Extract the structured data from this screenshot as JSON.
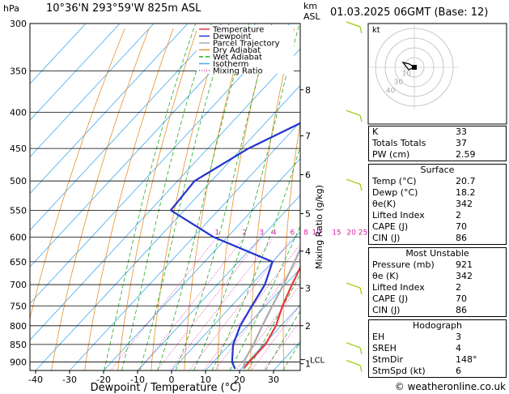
{
  "header": {
    "hpa": "hPa",
    "location": "10°36'N 293°59'W 825m ASL",
    "km": "km",
    "asl": "ASL",
    "datetime": "01.03.2025 06GMT (Base: 12)"
  },
  "chart_data": {
    "type": "skew-t",
    "pressure_levels": [
      300,
      350,
      400,
      450,
      500,
      550,
      600,
      650,
      700,
      750,
      800,
      850,
      900
    ],
    "temperature_ticks": [
      -40,
      -30,
      -20,
      -10,
      0,
      10,
      20,
      30
    ],
    "xlabel": "Dewpoint / Temperature (°C)",
    "ylabel": "Mixing Ratio (g/kg)",
    "km_ticks": [
      {
        "km": "8",
        "p": 372
      },
      {
        "km": "7",
        "p": 432
      },
      {
        "km": "6",
        "p": 490
      },
      {
        "km": "5",
        "p": 556
      },
      {
        "km": "4",
        "p": 628
      },
      {
        "km": "3",
        "p": 708
      },
      {
        "km": "2",
        "p": 800
      },
      {
        "km": "1",
        "p": 905
      }
    ],
    "lcl": {
      "label": "LCL",
      "p": 893
    },
    "mixing_ratio_labels": [
      "1",
      "2",
      "3",
      "4",
      "6",
      "8",
      "10",
      "15",
      "20",
      "25"
    ],
    "legend": [
      "Temperature",
      "Dewpoint",
      "Parcel Trajectory",
      "Dry Adiabat",
      "Wet Adiabat",
      "Isotherm",
      "Mixing Ratio"
    ],
    "series": [
      {
        "name": "Temperature",
        "color": "#e8393b",
        "points": [
          [
            920,
            20.7
          ],
          [
            900,
            20.5
          ],
          [
            850,
            20.5
          ],
          [
            800,
            18.5
          ],
          [
            750,
            15
          ],
          [
            700,
            12
          ],
          [
            650,
            9
          ],
          [
            600,
            8.5
          ],
          [
            550,
            3
          ],
          [
            500,
            -1.5
          ],
          [
            450,
            -6
          ],
          [
            400,
            -12
          ],
          [
            350,
            -18
          ],
          [
            320,
            -22
          ]
        ]
      },
      {
        "name": "Dewpoint",
        "color": "#2233cc",
        "points": [
          [
            920,
            18.2
          ],
          [
            900,
            15.5
          ],
          [
            850,
            11
          ],
          [
            800,
            8
          ],
          [
            750,
            6
          ],
          [
            700,
            4
          ],
          [
            650,
            0
          ],
          [
            600,
            -24
          ],
          [
            550,
            -44
          ],
          [
            500,
            -45
          ],
          [
            450,
            -38
          ],
          [
            400,
            -26
          ],
          [
            350,
            -20
          ],
          [
            300,
            -5
          ]
        ]
      },
      {
        "name": "Parcel Trajectory",
        "color": "#aaaaaa",
        "points": [
          [
            920,
            20.7
          ],
          [
            893,
            18.6
          ],
          [
            850,
            17
          ],
          [
            800,
            14.5
          ],
          [
            750,
            12
          ],
          [
            700,
            9.5
          ],
          [
            650,
            6.5
          ],
          [
            600,
            3
          ],
          [
            550,
            -1
          ],
          [
            500,
            -5.5
          ],
          [
            450,
            -10.5
          ],
          [
            400,
            -16.5
          ],
          [
            360,
            -22
          ]
        ]
      }
    ],
    "wind_barb_levels": [
      300,
      400,
      500,
      700,
      850,
      900
    ]
  },
  "hodograph": {
    "label": "kt",
    "ring_labels": [
      "10",
      "30",
      "40"
    ]
  },
  "indices": [
    {
      "label": "K",
      "value": "33"
    },
    {
      "label": "Totals Totals",
      "value": "37"
    },
    {
      "label": "PW (cm)",
      "value": "2.59"
    }
  ],
  "surface": {
    "title": "Surface",
    "rows": [
      {
        "label": "Temp (°C)",
        "value": "20.7"
      },
      {
        "label": "Dewp (°C)",
        "value": "18.2"
      },
      {
        "label": "θe(K)",
        "value": "342"
      },
      {
        "label": "Lifted Index",
        "value": "2"
      },
      {
        "label": "CAPE (J)",
        "value": "70"
      },
      {
        "label": "CIN (J)",
        "value": "86"
      }
    ]
  },
  "most_unstable": {
    "title": "Most Unstable",
    "rows": [
      {
        "label": "Pressure (mb)",
        "value": "921"
      },
      {
        "label": "θe (K)",
        "value": "342"
      },
      {
        "label": "Lifted Index",
        "value": "2"
      },
      {
        "label": "CAPE (J)",
        "value": "70"
      },
      {
        "label": "CIN (J)",
        "value": "86"
      }
    ]
  },
  "hodograph_table": {
    "title": "Hodograph",
    "rows": [
      {
        "label": "EH",
        "value": "3"
      },
      {
        "label": "SREH",
        "value": "4"
      },
      {
        "label": "StmDir",
        "value": "148°"
      },
      {
        "label": "StmSpd (kt)",
        "value": "6"
      }
    ]
  },
  "footer": {
    "copyright": "© weatheronline.co.uk"
  }
}
